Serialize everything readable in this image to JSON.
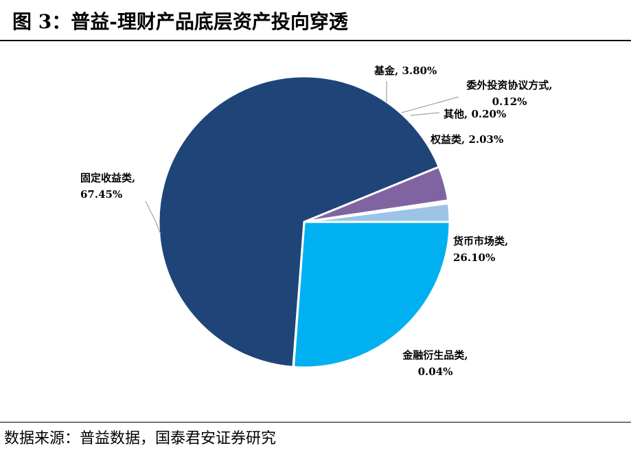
{
  "header": {
    "title": "图 3：普益-理财产品底层资产投向穿透"
  },
  "footer": {
    "source": "数据来源：普益数据，国泰君安证券研究"
  },
  "chart_data": {
    "type": "pie",
    "title": "图 3：普益-理财产品底层资产投向穿透",
    "slices": [
      {
        "name": "货币市场类",
        "value": 26.1,
        "label": "26.10%",
        "color": "#00B0F0"
      },
      {
        "name": "金融衍生品类",
        "value": 0.04,
        "label": "0.04%",
        "color": "#1F3864"
      },
      {
        "name": "固定收益类",
        "value": 67.45,
        "label": "67.45%",
        "color": "#1F4578"
      },
      {
        "name": "基金",
        "value": 3.8,
        "label": "3.80%",
        "color": "#8064A2"
      },
      {
        "name": "委外投资协议方式",
        "value": 0.12,
        "label": "0.12%",
        "color": "#B4C7E7"
      },
      {
        "name": "其他",
        "value": 0.2,
        "label": "0.20%",
        "color": "#D9D9D9"
      },
      {
        "name": "权益类",
        "value": 2.03,
        "label": "2.03%",
        "color": "#9DC3E6"
      }
    ]
  }
}
